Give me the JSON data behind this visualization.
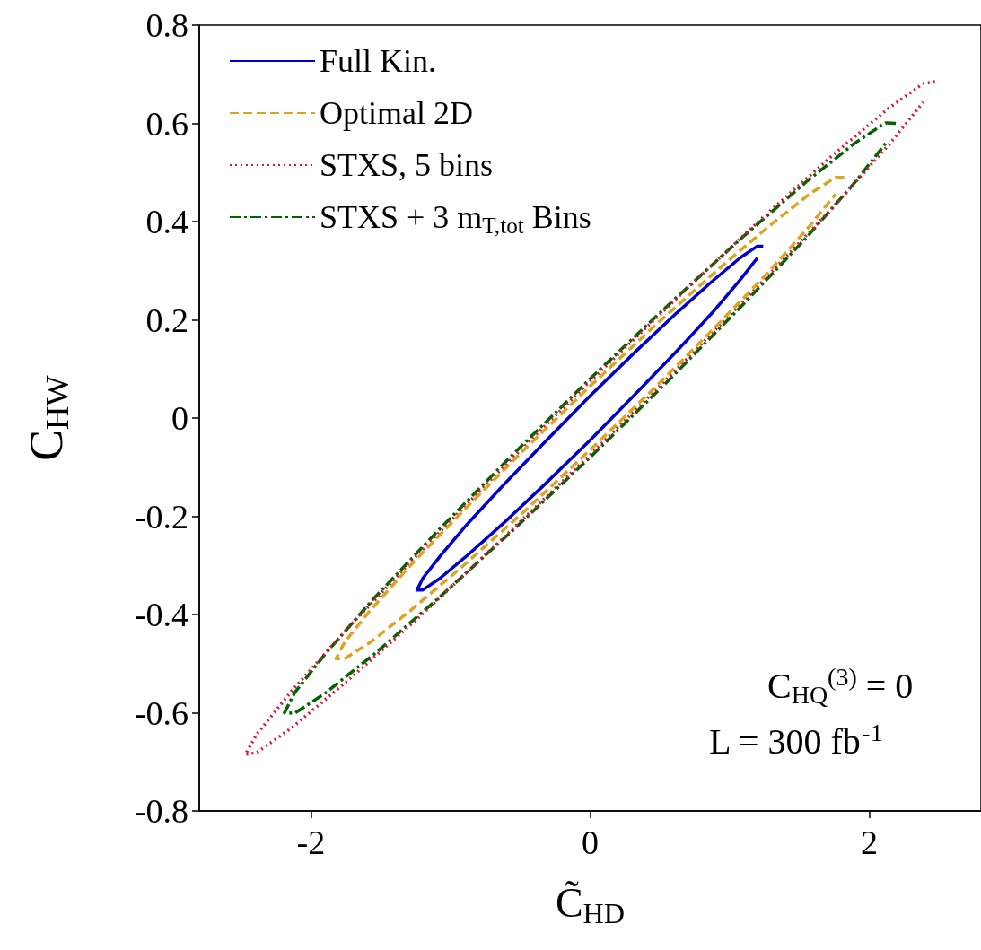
{
  "chart_data": {
    "type": "line",
    "xlabel": "C̃$_{HD}$",
    "ylabel": "C$_{HW}$",
    "xlim": [
      -2.8,
      2.8
    ],
    "xticks": [
      -2,
      0,
      2
    ],
    "ylim": [
      -0.8,
      0.8
    ],
    "yticks": [
      -0.8,
      -0.6,
      -0.4,
      -0.2,
      0,
      0.2,
      0.4,
      0.6,
      0.8
    ],
    "grid": false,
    "legend": "top left",
    "marker": "none",
    "annotations": [
      "C$_{HQ}$$^{(3)}$ = 0",
      "L = 300 fb$^{-1}$"
    ],
    "series": [
      {
        "name": "Full Kin.",
        "color": "#0000cc",
        "line_style": "solid",
        "x": [
          1.24,
          1.198,
          1.074,
          0.877,
          0.62,
          0.321,
          0,
          -0.321,
          -0.62,
          -0.877,
          -1.074,
          -1.198,
          -1.24,
          -1.198,
          -1.074,
          -0.877,
          -0.62,
          -0.321,
          0,
          0.321,
          0.62,
          0.877,
          1.074,
          1.198
        ],
        "values": [
          0.35,
          0.35,
          0.326,
          0.279,
          0.214,
          0.134,
          0.045,
          -0.048,
          -0.136,
          -0.215,
          -0.281,
          -0.326,
          -0.35,
          -0.35,
          -0.326,
          -0.279,
          -0.214,
          -0.134,
          -0.045,
          0.048,
          0.136,
          0.215,
          0.281,
          0.326
        ]
      },
      {
        "name": "Optimal 2D",
        "color": "#daa520",
        "line_style": "dashed",
        "x": [
          1.82,
          1.758,
          1.576,
          1.287,
          0.91,
          0.471,
          0,
          -0.471,
          -0.91,
          -1.287,
          -1.576,
          -1.758,
          -1.82,
          -1.758,
          -1.576,
          -1.287,
          -0.91,
          -0.471,
          0,
          0.471,
          0.91,
          1.287,
          1.576,
          1.758
        ],
        "values": [
          0.49,
          0.49,
          0.457,
          0.392,
          0.301,
          0.19,
          0.065,
          -0.064,
          -0.189,
          -0.3,
          -0.392,
          -0.456,
          -0.49,
          -0.49,
          -0.457,
          -0.392,
          -0.301,
          -0.19,
          -0.065,
          0.064,
          0.189,
          0.3,
          0.392,
          0.456
        ]
      },
      {
        "name": "STXS, 5 bins",
        "color": "#dc143c",
        "line_style": "dotted",
        "x": [
          2.47,
          2.386,
          2.139,
          1.746,
          1.235,
          0.64,
          0,
          -0.64,
          -1.235,
          -1.746,
          -2.139,
          -2.386,
          -2.47,
          -2.386,
          -2.139,
          -1.746,
          -1.235,
          -0.64,
          0,
          0.64,
          1.235,
          1.746,
          2.139,
          2.386
        ],
        "values": [
          0.685,
          0.681,
          0.631,
          0.537,
          0.408,
          0.249,
          0.075,
          -0.105,
          -0.278,
          -0.431,
          -0.556,
          -0.643,
          -0.685,
          -0.681,
          -0.631,
          -0.537,
          -0.408,
          -0.249,
          -0.075,
          0.105,
          0.278,
          0.431,
          0.556,
          0.643
        ]
      },
      {
        "name": "STXS + 3 m$_{T,tot}$ Bins",
        "color": "#006400",
        "line_style": "dashdot",
        "x": [
          2.19,
          2.116,
          1.897,
          1.548,
          1.095,
          0.567,
          0,
          -0.567,
          -1.095,
          -1.548,
          -1.897,
          -2.116,
          -2.19,
          -2.116,
          -1.897,
          -1.548,
          -1.095,
          -0.567,
          0,
          0.567,
          1.095,
          1.548,
          1.897,
          2.116
        ],
        "values": [
          0.6,
          0.601,
          0.56,
          0.481,
          0.369,
          0.232,
          0.08,
          -0.078,
          -0.231,
          -0.367,
          -0.48,
          -0.559,
          -0.6,
          -0.601,
          -0.56,
          -0.481,
          -0.369,
          -0.232,
          -0.08,
          0.078,
          0.231,
          0.367,
          0.48,
          0.559
        ]
      }
    ]
  }
}
